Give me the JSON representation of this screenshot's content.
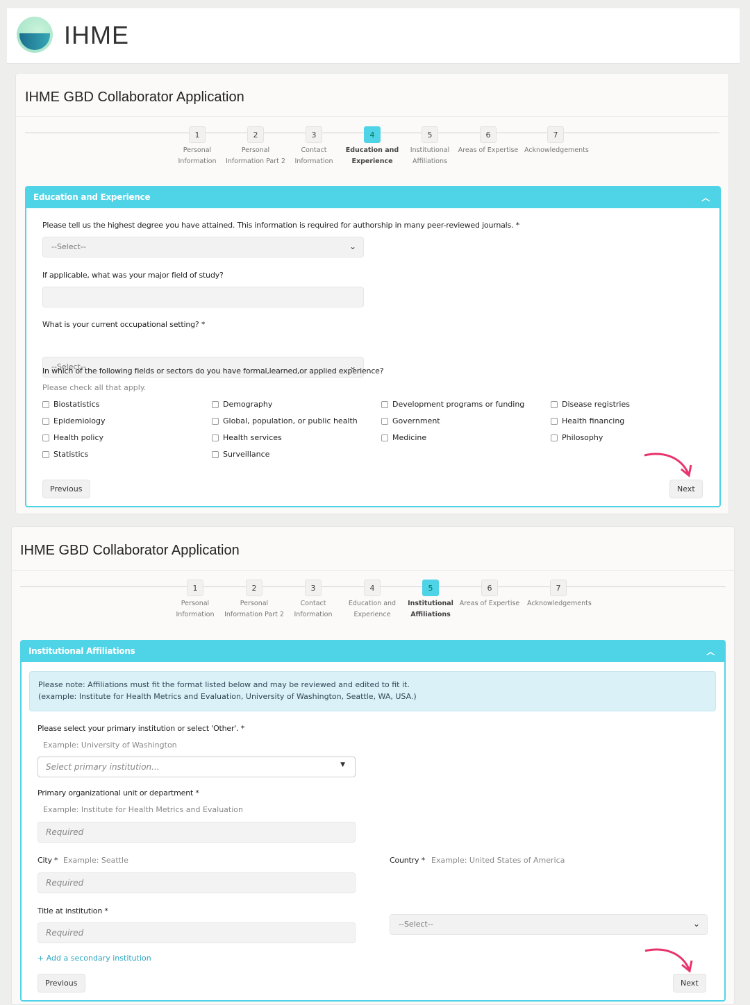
{
  "brand": {
    "name": "IHME"
  },
  "form1": {
    "title": "IHME GBD Collaborator Application",
    "steps": [
      {
        "n": "1",
        "label": "Personal Information"
      },
      {
        "n": "2",
        "label": "Personal Information Part 2"
      },
      {
        "n": "3",
        "label": "Contact Information"
      },
      {
        "n": "4",
        "label": "Education and Experience"
      },
      {
        "n": "5",
        "label": "Institutional Affiliations"
      },
      {
        "n": "6",
        "label": "Areas of Expertise"
      },
      {
        "n": "7",
        "label": "Acknowledgements"
      }
    ],
    "active_step": 4,
    "panel_title": "Education and Experience",
    "q_degree": "Please tell us the highest degree you have attained. This information is required for authorship in many peer-reviewed journals. *",
    "degree_value": "--Select--",
    "q_major": "If applicable, what was your major field of study?",
    "major_value": "",
    "q_setting": "What is your current occupational setting? *",
    "setting_value": "--Select--",
    "q_fields": "In which of the following fields or sectors do you have formal,learned,or applied experience?",
    "fields_hint": "Please check all that apply.",
    "fields": [
      [
        "Biostatistics",
        "Demography",
        "Development programs or funding",
        "Disease registries"
      ],
      [
        "Epidemiology",
        "Global, population, or public health",
        "Government",
        "Health financing"
      ],
      [
        "Health policy",
        "Health services",
        "Medicine",
        "Philosophy"
      ],
      [
        "Statistics",
        "Surveillance"
      ]
    ],
    "previous": "Previous",
    "next": "Next"
  },
  "form2": {
    "title": "IHME GBD Collaborator Application",
    "active_step": 5,
    "panel_title": "Institutional Affiliations",
    "note_line1": "Please note: Affiliations must fit the format listed below and may be reviewed and edited to fit it.",
    "note_line2": "(example: Institute for Health Metrics and Evaluation, University of Washington, Seattle, WA, USA.)",
    "q_institution": "Please select your primary institution or select 'Other'. *",
    "institution_example": "Example: University of Washington",
    "institution_placeholder": "Select primary institution...",
    "q_unit": "Primary organizational unit or department *",
    "unit_example": "Example: Institute for Health Metrics and Evaluation",
    "unit_placeholder": "Required",
    "q_city": "City *",
    "city_example": "Example: Seattle",
    "city_placeholder": "Required",
    "q_country": "Country *",
    "country_example": "Example: United States of America",
    "country_value": "--Select--",
    "q_title": "Title at institution *",
    "title_placeholder": "Required",
    "add_secondary": "+ Add a secondary institution",
    "previous": "Previous",
    "next": "Next"
  },
  "colors": {
    "accent": "#4fd3e6",
    "arrow": "#e8336b"
  }
}
